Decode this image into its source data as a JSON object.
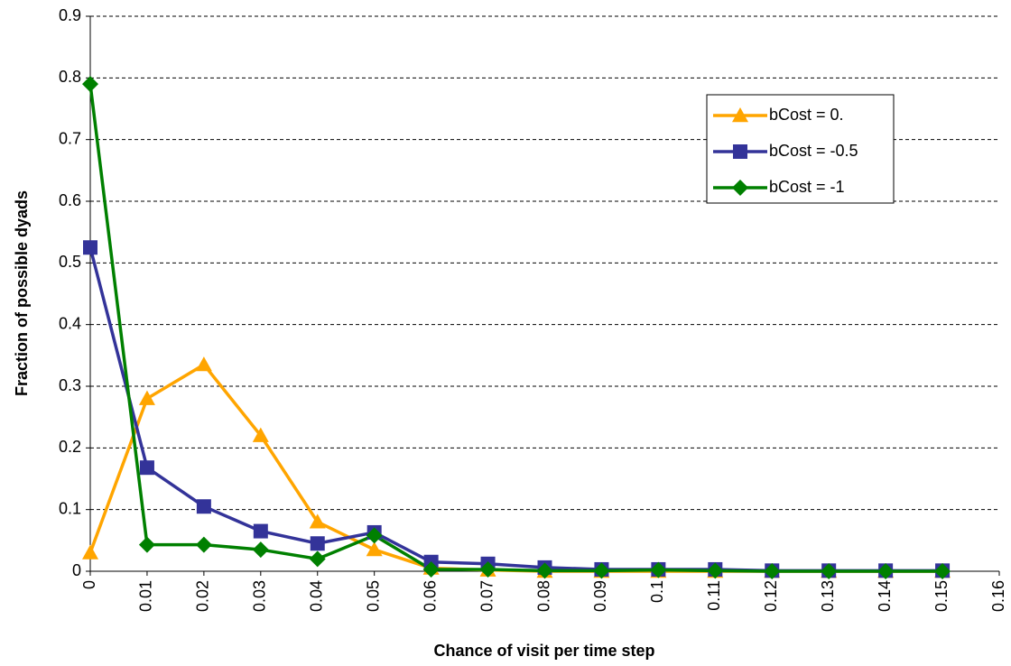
{
  "chart_data": {
    "type": "line",
    "x_label": "Chance of visit per time step",
    "y_label": "Fraction of possible dyads",
    "x": [
      0,
      0.01,
      0.02,
      0.03,
      0.04,
      0.05,
      0.06,
      0.07,
      0.08,
      0.09,
      0.1,
      0.11,
      0.12,
      0.13,
      0.14,
      0.15
    ],
    "series": [
      {
        "name": "bCost = 0.",
        "color": "#ffa500",
        "marker": "triangle",
        "values": [
          0.03,
          0.28,
          0.335,
          0.22,
          0.08,
          0.035,
          0.005,
          0.002,
          0,
          0,
          0,
          0,
          0,
          0,
          0,
          0
        ]
      },
      {
        "name": "bCost = -0.5",
        "color": "#333399",
        "marker": "square",
        "values": [
          0.525,
          0.168,
          0.105,
          0.065,
          0.045,
          0.063,
          0.015,
          0.012,
          0.006,
          0.003,
          0.003,
          0.003,
          0.001,
          0.001,
          0.001,
          0.001
        ]
      },
      {
        "name": "bCost = -1",
        "color": "#008000",
        "marker": "diamond",
        "values": [
          0.79,
          0.043,
          0.043,
          0.035,
          0.02,
          0.058,
          0.003,
          0.003,
          0.001,
          0.001,
          0.002,
          0.001,
          0,
          0,
          0,
          0
        ]
      }
    ],
    "xlim": [
      0,
      0.16
    ],
    "xticks": [
      0,
      0.01,
      0.02,
      0.03,
      0.04,
      0.05,
      0.06,
      0.07,
      0.08,
      0.09,
      0.1,
      0.11,
      0.12,
      0.13,
      0.14,
      0.15,
      0.16
    ],
    "ylim": [
      0,
      0.9
    ],
    "yticks": [
      0,
      0.1,
      0.2,
      0.3,
      0.4,
      0.5,
      0.6,
      0.7,
      0.8,
      0.9
    ],
    "grid": true,
    "legend": "upper right"
  }
}
